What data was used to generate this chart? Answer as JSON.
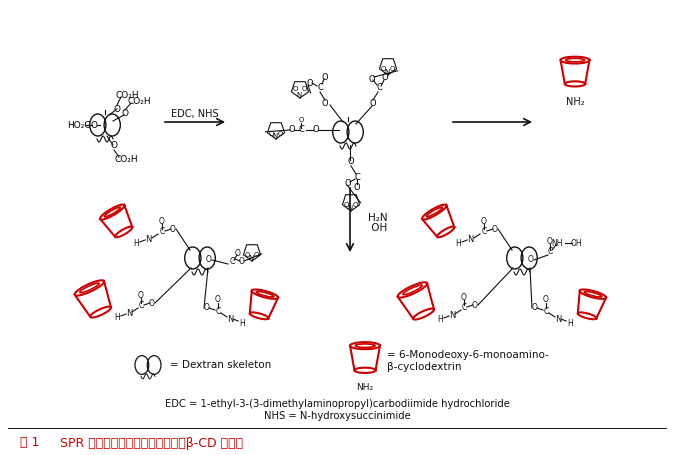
{
  "title_line1": "EDC = 1-ethyl-3-(3-dimethylaminopropyl)carbodiimide hydrochloride",
  "title_line2": "NHS = N-hydroxysuccinimide",
  "caption_fig": "図 1",
  "caption_text": "  SPR 装置のセンサーチップ上へのβ-CD の固定",
  "legend1_text": "= Dextran skeleton",
  "legend2_line1": "= 6-Monodeoxy-6-monoamino-",
  "legend2_line2": "β-cyclodextrin",
  "arrow1_label": "EDC, NHS",
  "arrow2_label": "H₂N  OH",
  "bg_color": "#ffffff",
  "red_color": "#cc0000",
  "black_color": "#111111",
  "fig_width": 6.74,
  "fig_height": 4.55,
  "dpi": 100
}
